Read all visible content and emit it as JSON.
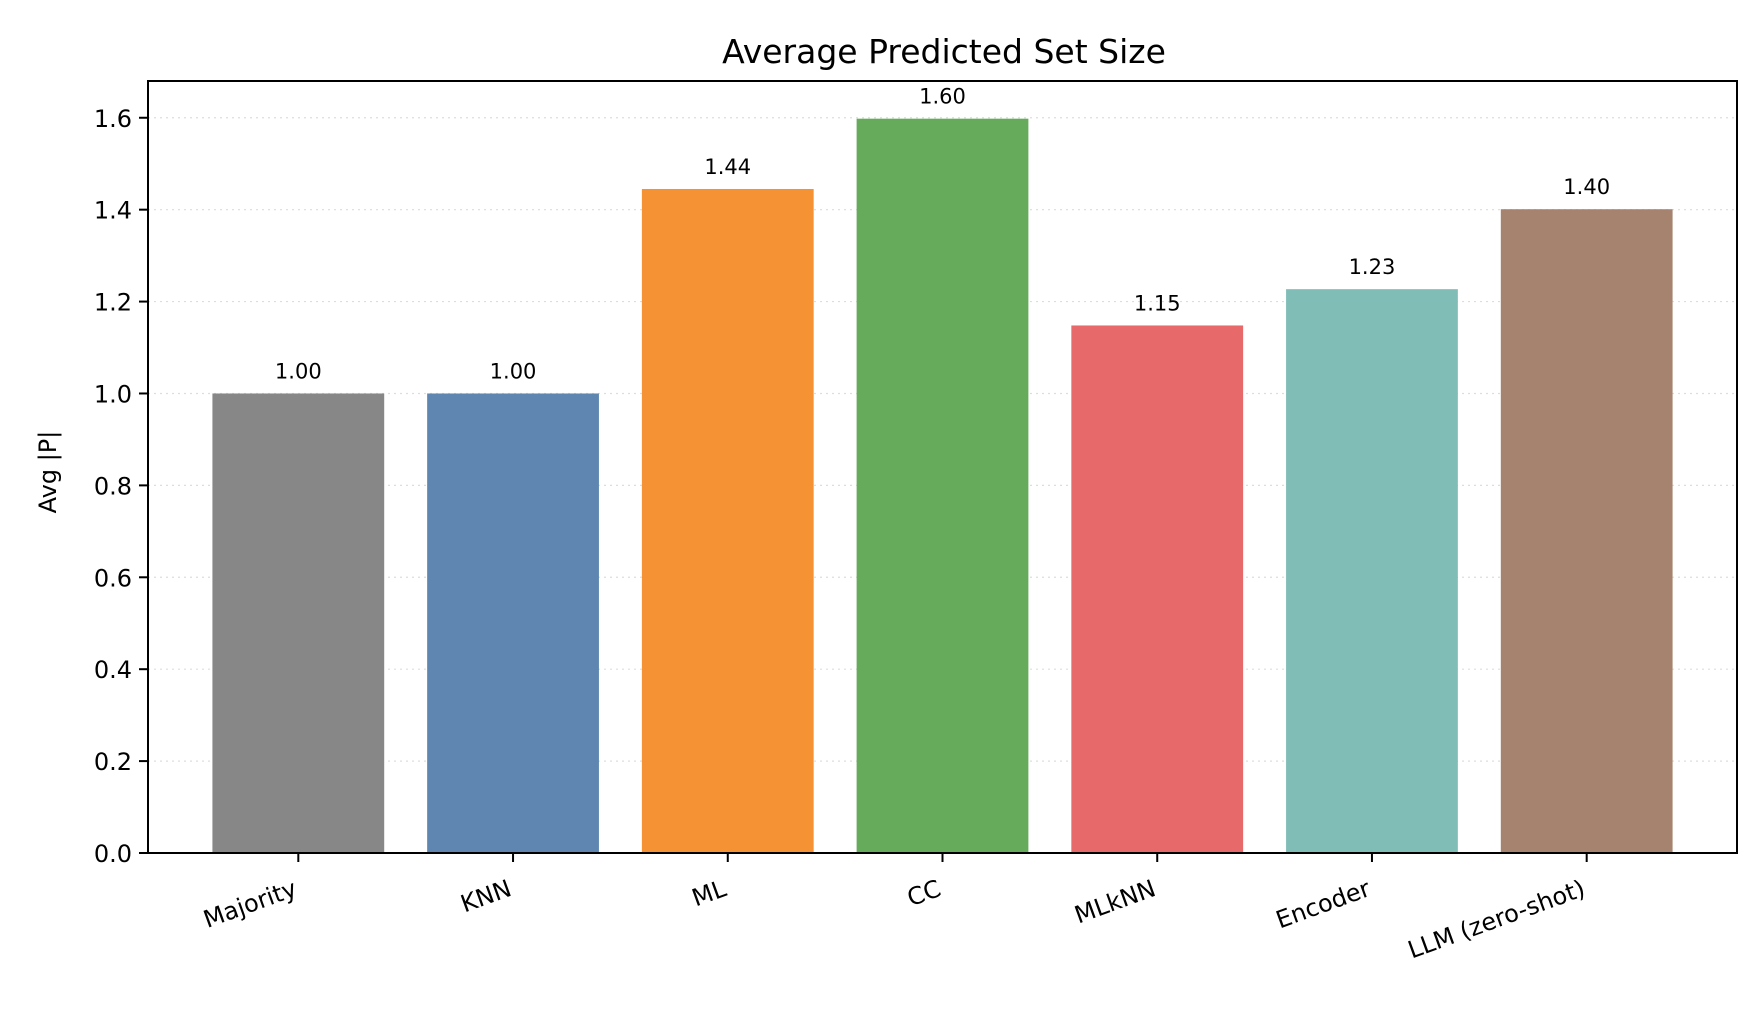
{
  "chart_data": {
    "type": "bar",
    "title": "Average Predicted Set Size",
    "ylabel": "Avg |P|",
    "xlabel": "",
    "ylim": [
      0,
      1.68
    ],
    "yticks": [
      "0.0",
      "0.2",
      "0.4",
      "0.6",
      "0.8",
      "1.0",
      "1.2",
      "1.4",
      "1.6"
    ],
    "grid": "horizontal dotted",
    "categories": [
      "Majority",
      "KNN",
      "ML",
      "CC",
      "MLkNN",
      "Encoder",
      "LLM (zero-shot)"
    ],
    "values": [
      1.0,
      1.0,
      1.445,
      1.598,
      1.148,
      1.227,
      1.401
    ],
    "value_labels": [
      "1.00",
      "1.00",
      "1.44",
      "1.60",
      "1.15",
      "1.23",
      "1.40"
    ],
    "colors": [
      "#878787",
      "#5e86b1",
      "#f59233",
      "#65ab5b",
      "#e7696a",
      "#81bdb7",
      "#a6836e"
    ]
  }
}
